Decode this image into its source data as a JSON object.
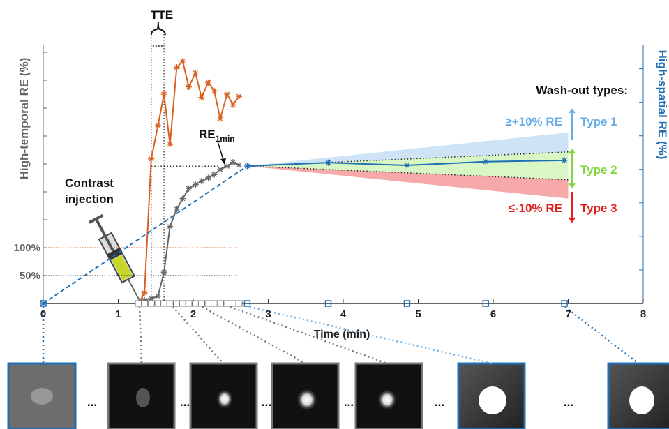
{
  "chart_data": {
    "type": "line",
    "xlabel": "Time (min)",
    "ylabel": "High-temporal RE (%)",
    "y2label": "High-spatial RE (%)",
    "xlim": [
      0,
      8
    ],
    "xticks": [
      0,
      1,
      2,
      3,
      4,
      5,
      6,
      7,
      8
    ],
    "ylim": [
      0,
      462.5
    ],
    "yticks": [
      {
        "value": 50,
        "label": "50%"
      },
      {
        "value": 100,
        "label": "100%"
      }
    ],
    "yticks_unlabeled": [
      150,
      200,
      250,
      300,
      350,
      400,
      450
    ],
    "y2lim": [
      0,
      7.7
    ],
    "y2ticks_unlabeled": [
      1,
      2,
      3,
      4,
      5,
      6,
      7
    ],
    "series": [
      {
        "color": "#d9601f",
        "axis": "y",
        "x": [
          1.27,
          1.35,
          1.44,
          1.53,
          1.61,
          1.69,
          1.78,
          1.86,
          1.94,
          2.03,
          2.11,
          2.2,
          2.28,
          2.36,
          2.45,
          2.53,
          2.61
        ],
        "values": [
          0,
          19,
          259,
          319,
          375,
          285,
          423,
          434,
          388,
          413,
          369,
          396,
          381,
          331,
          375,
          356,
          371
        ]
      },
      {
        "color": "#666666",
        "axis": "y",
        "x": [
          1.27,
          1.35,
          1.44,
          1.53,
          1.61,
          1.69,
          1.78,
          1.86,
          1.94,
          2.03,
          2.11,
          2.2,
          2.28,
          2.36,
          2.45,
          2.53,
          2.61
        ],
        "values": [
          0,
          6,
          9,
          13,
          56,
          138,
          169,
          188,
          206,
          213,
          219,
          225,
          231,
          240,
          246,
          253,
          248
        ]
      },
      {
        "color": "#1f6fb5",
        "axis": "y2",
        "x": [
          0,
          2.72,
          3.8,
          4.85,
          5.9,
          6.95
        ],
        "values": [
          0,
          4.1,
          4.2,
          4.12,
          4.23,
          4.27
        ]
      }
    ],
    "reference_lines": [
      {
        "y": 100,
        "color": "#d9601f"
      },
      {
        "y": 50,
        "color": "#333333"
      }
    ],
    "washout_fan": {
      "x": [
        2.72,
        7
      ],
      "type1_upper": [
        4.1,
        5.1
      ],
      "type2_upper": [
        4.1,
        4.52
      ],
      "type2_lower": [
        4.1,
        3.69
      ],
      "type3_lower": [
        4.1,
        3.13
      ],
      "colors": {
        "type1": "#cfe3f7",
        "type2": "#d8f7c4",
        "type3": "#f7a8a8"
      }
    },
    "annotations": {
      "tte": "TTE",
      "re1min": "RE",
      "re1min_sub": "1min",
      "injection_line1": "Contrast",
      "injection_line2": "injection",
      "washout_title": "Wash-out types:",
      "type1": "Type 1",
      "type2": "Type 2",
      "type3": "Type 3",
      "type1_range": "≥+10% RE",
      "type3_range": "≤-10% RE",
      "ellipsis": "...",
      "colors": {
        "type1": "#6aaee8",
        "type2": "#7fd63a",
        "type3": "#e0201b"
      }
    }
  }
}
